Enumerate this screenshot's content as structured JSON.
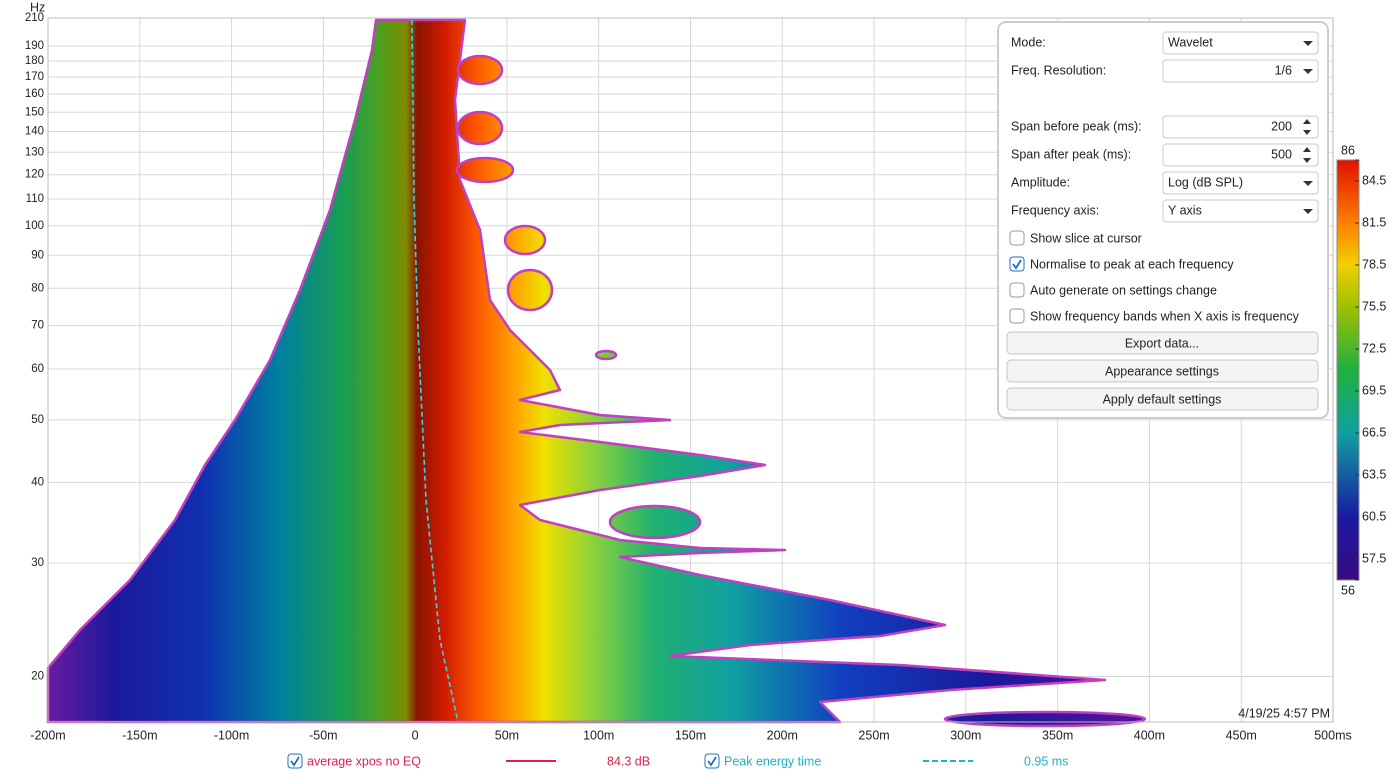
{
  "chart_data": {
    "type": "spectrogram",
    "y_label": "Hz",
    "xlim": [
      -200,
      500
    ],
    "xticks": [
      {
        "value": -200,
        "label": "-200m"
      },
      {
        "value": -150,
        "label": "-150m"
      },
      {
        "value": -100,
        "label": "-100m"
      },
      {
        "value": -50,
        "label": "-50m"
      },
      0,
      {
        "value": 50,
        "label": "50m"
      },
      {
        "value": 100,
        "label": "100m"
      },
      {
        "value": 150,
        "label": "150m"
      },
      {
        "value": 200,
        "label": "200m"
      },
      {
        "value": 250,
        "label": "250m"
      },
      {
        "value": 300,
        "label": "300m"
      },
      {
        "value": 350,
        "label": "350m"
      },
      {
        "value": 400,
        "label": "400m"
      },
      {
        "value": 450,
        "label": "450m"
      },
      {
        "value": 500,
        "label": "500ms"
      }
    ],
    "ylim": [
      17,
      210
    ],
    "y_log": true,
    "yticks": [
      20,
      30,
      40,
      50,
      60,
      70,
      80,
      90,
      100,
      110,
      120,
      130,
      140,
      150,
      160,
      170,
      180,
      190,
      210
    ],
    "grid": true,
    "color_lim": [
      56,
      86
    ],
    "color_ticks": [
      56,
      57.5,
      60.5,
      63.5,
      66.5,
      69.5,
      72.5,
      75.5,
      78.5,
      81.5,
      84.5,
      86
    ],
    "timestamp": "4/19/25 4:57 PM",
    "legend": [
      {
        "name": "average xpos no EQ",
        "color": "#e0204a",
        "readout": "84.3 dB",
        "checked": true,
        "dashed": false
      },
      {
        "name": "Peak energy time",
        "color": "#20b0c8",
        "readout": "0.95 ms",
        "checked": true,
        "dashed": true
      }
    ]
  },
  "panel": {
    "rows": [
      {
        "label": "Mode:",
        "value": "Wavelet"
      },
      {
        "label": "Freq. Resolution:",
        "value": "1/6"
      },
      {
        "label": "Span before peak (ms):",
        "value": "200"
      },
      {
        "label": "Span after peak (ms):",
        "value": "500"
      },
      {
        "label": "Amplitude:",
        "value": "Log (dB SPL)"
      },
      {
        "label": "Frequency axis:",
        "value": "Y axis"
      }
    ],
    "checkboxes": [
      {
        "label": "Show slice at cursor",
        "checked": false
      },
      {
        "label": "Normalise to peak at each frequency",
        "checked": true
      },
      {
        "label": "Auto generate on settings change",
        "checked": false
      },
      {
        "label": "Show frequency bands when X axis is frequency",
        "checked": false
      }
    ],
    "buttons": [
      "Export data...",
      "Appearance settings",
      "Apply default settings"
    ]
  }
}
